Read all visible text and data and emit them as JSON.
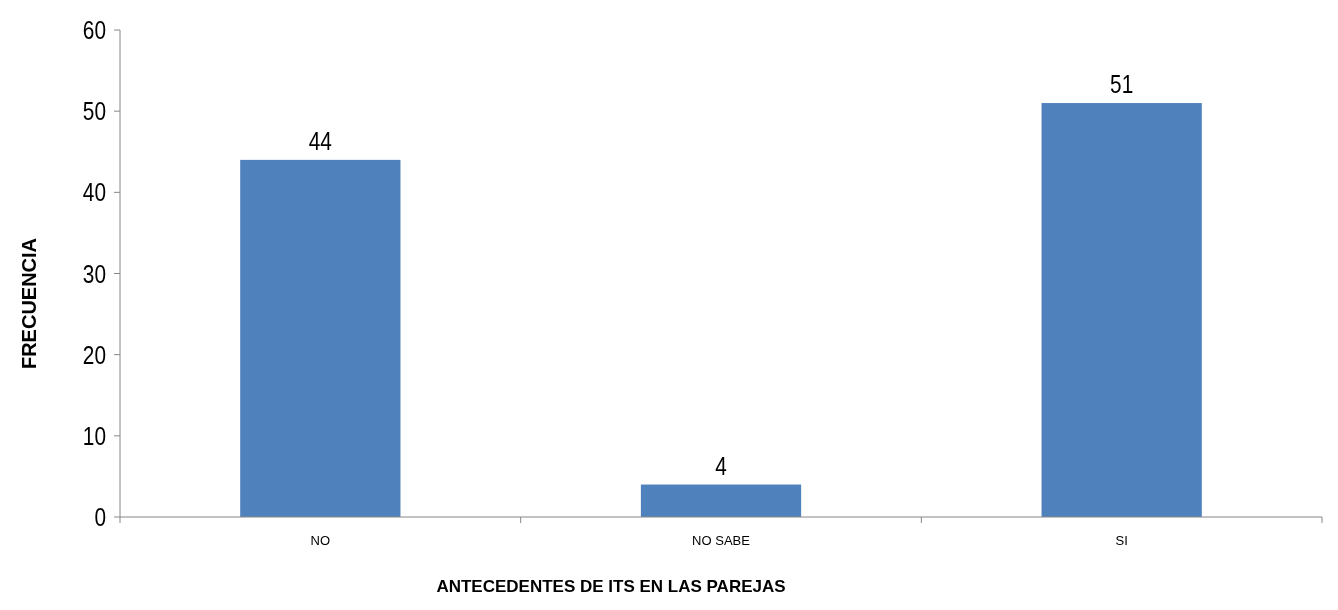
{
  "chart_data": {
    "type": "bar",
    "xlabel": "ANTECEDENTES DE ITS EN LAS PAREJAS",
    "ylabel": "FRECUENCIA",
    "categories": [
      "NO",
      "NO SABE",
      "SI"
    ],
    "values": [
      44,
      4,
      51
    ],
    "color": "#4f81bd",
    "ylim": [
      0,
      60
    ],
    "yticks": [
      0,
      10,
      20,
      30,
      40,
      50,
      60
    ],
    "grid": false,
    "data_labels": true
  }
}
